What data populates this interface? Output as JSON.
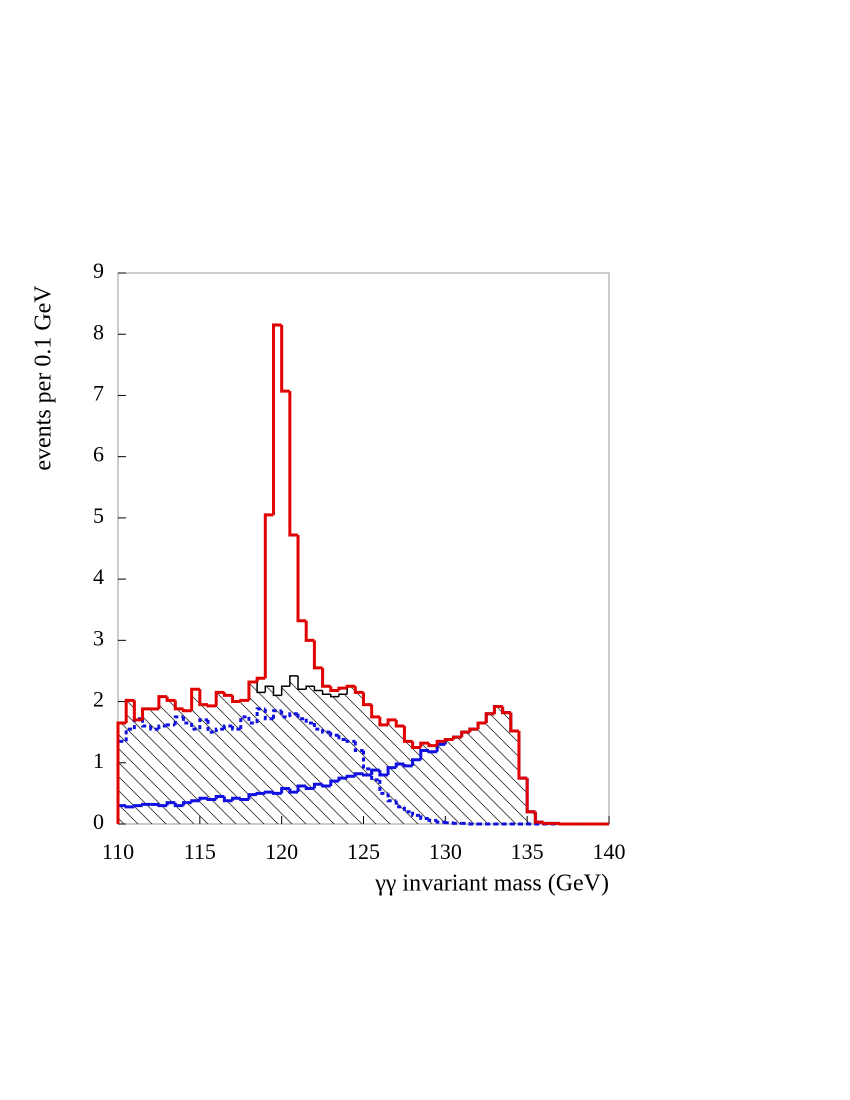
{
  "chart_data": {
    "type": "histogram",
    "x_label": "γγ invariant mass (GeV)",
    "y_label": "events per 0.1 GeV",
    "bins": [
      110,
      110.5,
      111,
      111.5,
      112,
      112.5,
      113,
      113.5,
      114,
      114.5,
      115,
      115.5,
      116,
      116.5,
      117,
      117.5,
      118,
      118.5,
      119,
      119.5,
      120,
      120.5,
      121,
      121.5,
      122,
      122.5,
      123,
      123.5,
      124,
      124.5,
      125,
      125.5,
      126,
      126.5,
      127,
      127.5,
      128,
      128.5,
      129,
      129.5,
      130,
      130.5,
      131,
      131.5,
      132,
      132.5,
      133,
      133.5,
      134,
      134.5,
      135,
      135.5,
      136,
      136.5,
      137,
      137.5,
      138,
      138.5,
      139,
      139.5,
      140
    ],
    "series": [
      {
        "color": "#000000",
        "hatch": true,
        "dash": false,
        "width": 1.5,
        "values": [
          1.65,
          2.02,
          1.7,
          1.88,
          1.88,
          2.08,
          2.02,
          1.88,
          1.85,
          2.2,
          1.95,
          1.93,
          2.15,
          2.1,
          2.0,
          2.02,
          2.32,
          2.15,
          2.25,
          2.1,
          2.25,
          2.42,
          2.2,
          2.25,
          2.18,
          2.12,
          2.08,
          2.12,
          2.25,
          2.15,
          1.95,
          1.75,
          1.62,
          1.7,
          1.6,
          1.35,
          1.25,
          1.32,
          1.28,
          1.35,
          1.38,
          1.42,
          1.5,
          1.55,
          1.65,
          1.8,
          1.92,
          1.82,
          1.52,
          0.75,
          0.2,
          0.03,
          0.01,
          0.01,
          0,
          0,
          0,
          0,
          0,
          0
        ]
      },
      {
        "color": "#1010e0",
        "hatch": false,
        "dash": true,
        "width": 3,
        "values": [
          1.35,
          1.55,
          1.72,
          1.6,
          1.55,
          1.6,
          1.62,
          1.75,
          1.65,
          1.55,
          1.7,
          1.5,
          1.55,
          1.6,
          1.55,
          1.75,
          1.65,
          1.88,
          1.72,
          1.85,
          1.75,
          1.8,
          1.72,
          1.65,
          1.55,
          1.5,
          1.45,
          1.38,
          1.35,
          1.2,
          0.9,
          0.72,
          0.5,
          0.38,
          0.28,
          0.2,
          0.14,
          0.09,
          0.06,
          0.03,
          0.02,
          0.01,
          0.01,
          0,
          0,
          0,
          0,
          0,
          0,
          0,
          0,
          0,
          0,
          0,
          0,
          0,
          0,
          0,
          0,
          0
        ]
      },
      {
        "color": "#1010e0",
        "hatch": false,
        "dash": false,
        "width": 3,
        "values": [
          0.3,
          0.28,
          0.3,
          0.32,
          0.32,
          0.3,
          0.35,
          0.3,
          0.35,
          0.38,
          0.42,
          0.4,
          0.45,
          0.38,
          0.42,
          0.4,
          0.48,
          0.5,
          0.52,
          0.5,
          0.58,
          0.52,
          0.62,
          0.58,
          0.65,
          0.62,
          0.7,
          0.75,
          0.78,
          0.82,
          0.8,
          0.88,
          0.8,
          0.92,
          0.98,
          0.95,
          1.05,
          1.2,
          1.18,
          1.3,
          1.38,
          1.42,
          1.5,
          1.55,
          1.65,
          1.8,
          1.92,
          1.82,
          1.52,
          0.75,
          0.2,
          0.03,
          0.01,
          0.01,
          0,
          0,
          0,
          0,
          0,
          0
        ]
      },
      {
        "color": "#e00000",
        "hatch": false,
        "dash": false,
        "width": 3,
        "values": [
          1.65,
          2.02,
          1.7,
          1.88,
          1.88,
          2.08,
          2.02,
          1.88,
          1.85,
          2.2,
          1.95,
          1.93,
          2.15,
          2.1,
          2.0,
          2.02,
          2.32,
          2.38,
          5.05,
          8.15,
          7.07,
          4.72,
          3.32,
          3.0,
          2.55,
          2.25,
          2.18,
          2.22,
          2.25,
          2.15,
          1.95,
          1.75,
          1.62,
          1.7,
          1.6,
          1.35,
          1.25,
          1.32,
          1.28,
          1.35,
          1.38,
          1.42,
          1.5,
          1.55,
          1.65,
          1.8,
          1.92,
          1.82,
          1.52,
          0.75,
          0.2,
          0.03,
          0.01,
          0.01,
          0,
          0,
          0,
          0,
          0,
          0
        ]
      }
    ],
    "xlim": [
      110,
      140
    ],
    "ylim": [
      0,
      9
    ],
    "xticks": [
      110,
      115,
      120,
      125,
      130,
      135,
      140
    ],
    "yticks": [
      0,
      1,
      2,
      3,
      4,
      5,
      6,
      7,
      8,
      9
    ]
  }
}
